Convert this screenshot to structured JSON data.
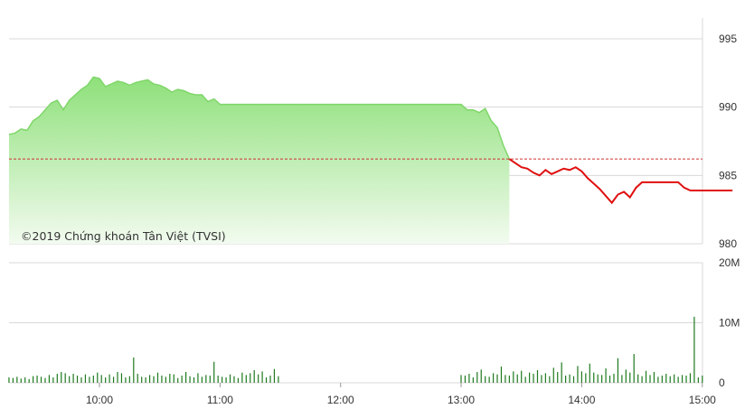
{
  "copyright": "©2019 Chứng khoán Tân Việt (TVSI)",
  "colors": {
    "above_reference_line": "#7fd66a",
    "above_reference_fill_top": "#8ee07a",
    "above_reference_fill_bottom": "#f2fbef",
    "below_reference_line": "#e01010",
    "reference_line": "#d03030",
    "volume_bar": "#1e7a1e",
    "grid": "#d8d8d8",
    "axis_text": "#333333"
  },
  "chart_data": [
    {
      "type": "line",
      "title": "",
      "xlabel": "",
      "ylabel": "",
      "ylim": [
        980,
        995
      ],
      "y_ticks": [
        "995",
        "990",
        "985",
        "980"
      ],
      "y_tick_values": [
        995,
        990,
        985,
        980
      ],
      "reference_value": 986.2,
      "grid": true,
      "series": [
        {
          "x": [
            "09:15",
            "09:18",
            "09:21",
            "09:24",
            "09:27",
            "09:30",
            "09:33",
            "09:36",
            "09:39",
            "09:42",
            "09:45",
            "09:48",
            "09:51",
            "09:54",
            "09:57",
            "10:00",
            "10:03",
            "10:06",
            "10:09",
            "10:12",
            "10:15",
            "10:18",
            "10:21",
            "10:24",
            "10:27",
            "10:30",
            "10:33",
            "10:36",
            "10:39",
            "10:42",
            "10:45",
            "10:48",
            "10:51",
            "10:54",
            "10:57",
            "11:00",
            "11:03",
            "11:06",
            "11:09",
            "11:12",
            "11:15",
            "11:18",
            "11:21",
            "11:24",
            "11:27",
            "11:30",
            "13:00",
            "13:03",
            "13:06",
            "13:09",
            "13:12",
            "13:15",
            "13:18",
            "13:21",
            "13:24",
            "13:27",
            "13:30",
            "13:33",
            "13:36",
            "13:39",
            "13:42",
            "13:45",
            "13:48",
            "13:51",
            "13:54",
            "13:57",
            "14:00",
            "14:03",
            "14:06",
            "14:09",
            "14:12",
            "14:15",
            "14:18",
            "14:21",
            "14:24",
            "14:27",
            "14:30",
            "14:33",
            "14:36",
            "14:39",
            "14:42",
            "14:45",
            "14:48",
            "14:51",
            "14:54",
            "14:57",
            "15:00",
            "15:03",
            "15:06",
            "15:09",
            "15:12",
            "15:15"
          ],
          "values": [
            988.0,
            988.1,
            988.4,
            988.3,
            989.0,
            989.3,
            989.8,
            990.3,
            990.5,
            989.8,
            990.5,
            990.9,
            991.3,
            991.6,
            992.2,
            992.1,
            991.5,
            991.7,
            991.9,
            991.8,
            991.6,
            991.8,
            991.9,
            992.0,
            991.7,
            991.6,
            991.4,
            991.1,
            991.3,
            991.2,
            991.0,
            990.9,
            990.9,
            990.4,
            990.6,
            990.2,
            990.2,
            990.2,
            990.2,
            990.2,
            990.2,
            990.2,
            990.2,
            990.2,
            990.2,
            990.2,
            990.2,
            989.8,
            989.8,
            989.6,
            989.9,
            989.0,
            988.5,
            987.2,
            986.2,
            985.9,
            985.6,
            985.5,
            985.2,
            985.0,
            985.4,
            985.1,
            985.3,
            985.5,
            985.4,
            985.6,
            985.3,
            984.8,
            984.4,
            984.0,
            983.5,
            983.0,
            983.6,
            983.8,
            983.4,
            984.1,
            984.5,
            984.5,
            984.5,
            984.5,
            984.5,
            984.5,
            984.5,
            984.1,
            983.9,
            983.9,
            983.9,
            983.9,
            983.9,
            983.9,
            983.9,
            983.9
          ]
        }
      ]
    },
    {
      "type": "bar",
      "title": "",
      "xlabel": "",
      "ylabel": "",
      "ylim": [
        0,
        20000000
      ],
      "y_ticks": [
        "20M",
        "10M",
        "0"
      ],
      "y_tick_values": [
        20000000,
        10000000,
        0
      ],
      "x_ticks": [
        "10:00",
        "11:00",
        "12:00",
        "13:00",
        "14:00",
        "15:00"
      ],
      "grid": true,
      "series": [
        {
          "x": [
            "09:15",
            "09:17",
            "09:19",
            "09:21",
            "09:23",
            "09:25",
            "09:27",
            "09:29",
            "09:31",
            "09:33",
            "09:35",
            "09:37",
            "09:39",
            "09:41",
            "09:43",
            "09:45",
            "09:47",
            "09:49",
            "09:51",
            "09:53",
            "09:55",
            "09:57",
            "09:59",
            "10:01",
            "10:03",
            "10:05",
            "10:07",
            "10:09",
            "10:11",
            "10:13",
            "10:15",
            "10:17",
            "10:19",
            "10:21",
            "10:23",
            "10:25",
            "10:27",
            "10:29",
            "10:31",
            "10:33",
            "10:35",
            "10:37",
            "10:39",
            "10:41",
            "10:43",
            "10:45",
            "10:47",
            "10:49",
            "10:51",
            "10:53",
            "10:55",
            "10:57",
            "10:59",
            "11:01",
            "11:03",
            "11:05",
            "11:07",
            "11:09",
            "11:11",
            "11:13",
            "11:15",
            "11:17",
            "11:19",
            "11:21",
            "11:23",
            "11:25",
            "11:27",
            "11:29",
            "13:00",
            "13:02",
            "13:04",
            "13:06",
            "13:08",
            "13:10",
            "13:12",
            "13:14",
            "13:16",
            "13:18",
            "13:20",
            "13:22",
            "13:24",
            "13:26",
            "13:28",
            "13:30",
            "13:32",
            "13:34",
            "13:36",
            "13:38",
            "13:40",
            "13:42",
            "13:44",
            "13:46",
            "13:48",
            "13:50",
            "13:52",
            "13:54",
            "13:56",
            "13:58",
            "14:00",
            "14:02",
            "14:04",
            "14:06",
            "14:08",
            "14:10",
            "14:12",
            "14:14",
            "14:16",
            "14:18",
            "14:20",
            "14:22",
            "14:24",
            "14:26",
            "14:28",
            "14:30",
            "14:32",
            "14:34",
            "14:36",
            "14:38",
            "14:40",
            "14:42",
            "14:44",
            "14:46",
            "14:48",
            "14:50",
            "14:52",
            "14:54",
            "14:56",
            "14:58",
            "15:00"
          ],
          "values": [
            900000,
            800000,
            1000000,
            700000,
            900000,
            600000,
            1100000,
            1200000,
            1000000,
            800000,
            1300000,
            900000,
            1500000,
            1800000,
            1600000,
            1100000,
            1500000,
            1200000,
            900000,
            1400000,
            1000000,
            1200000,
            1700000,
            1300000,
            900000,
            1400000,
            1000000,
            1800000,
            1600000,
            900000,
            1100000,
            4200000,
            1500000,
            1000000,
            900000,
            1300000,
            1100000,
            1700000,
            1200000,
            1000000,
            1500000,
            1400000,
            800000,
            1200000,
            1800000,
            1100000,
            900000,
            1600000,
            1000000,
            1300000,
            1200000,
            3500000,
            1200000,
            1000000,
            900000,
            1400000,
            1100000,
            800000,
            1700000,
            1300000,
            1600000,
            2100000,
            1400000,
            1900000,
            900000,
            1200000,
            2300000,
            1100000,
            1300000,
            1200000,
            1500000,
            900000,
            1800000,
            2200000,
            1100000,
            1000000,
            1600000,
            1400000,
            2700000,
            1300000,
            1200000,
            1900000,
            1400000,
            2000000,
            1000000,
            1700000,
            1500000,
            2100000,
            1300000,
            1600000,
            1100000,
            2500000,
            1800000,
            3400000,
            1200000,
            1400000,
            1100000,
            2800000,
            1900000,
            1600000,
            3200000,
            1700000,
            1400000,
            1300000,
            2400000,
            1200000,
            1500000,
            4100000,
            1300000,
            2200000,
            1700000,
            4800000,
            1400000,
            1100000,
            2000000,
            1300000,
            1800000,
            1000000,
            1200000,
            1500000,
            1100000,
            1400000,
            1000000,
            1300000,
            1200000,
            1600000,
            11000000,
            900000,
            1200000
          ]
        }
      ]
    }
  ]
}
